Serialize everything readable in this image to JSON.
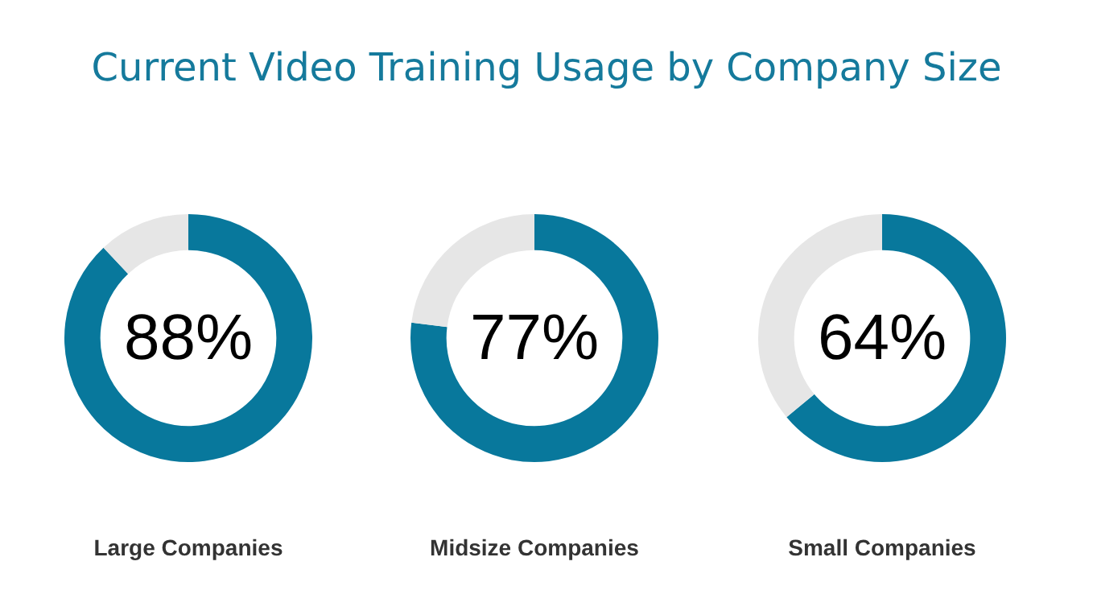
{
  "chart_data": [
    {
      "type": "donut",
      "title": "Current Video Training Usage by Company Size",
      "xlabel": "Large Companies",
      "categories": [
        null,
        null
      ],
      "values": [
        88,
        12
      ],
      "colors": [
        "#08789c",
        "#e6e6e6"
      ],
      "value_labels": [
        "88%",
        null
      ],
      "legend": false
    },
    {
      "type": "donut",
      "xlabel": "Midsize Companies",
      "categories": [
        null,
        null
      ],
      "values": [
        77,
        23
      ],
      "colors": [
        "#08789c",
        "#e6e6e6"
      ],
      "value_labels": [
        "77%",
        null
      ],
      "legend": false
    },
    {
      "type": "donut",
      "xlabel": "Small Companies",
      "categories": [
        null,
        null
      ],
      "values": [
        64,
        36
      ],
      "colors": [
        "#08789c",
        "#e6e6e6"
      ],
      "value_labels": [
        "64%",
        null
      ],
      "legend": false
    }
  ]
}
